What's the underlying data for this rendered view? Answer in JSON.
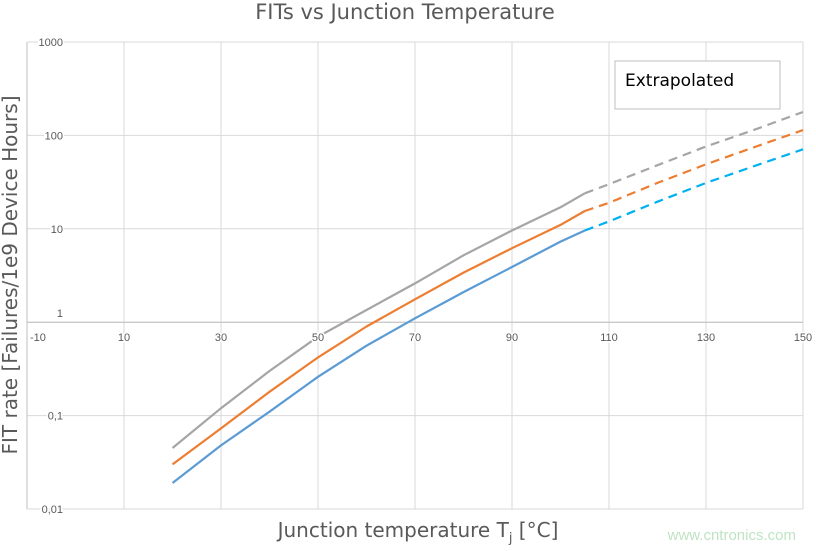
{
  "chart_data": {
    "type": "line",
    "title": "FITs vs Junction Temperature",
    "xlabel": "Junction temperature T",
    "xlabel_sub": "j",
    "xlabel_unit": " [°C]",
    "ylabel": "FIT rate [Failures/1e9 Device Hours]",
    "xlim": [
      -10,
      150
    ],
    "ylim": [
      0.01,
      1000
    ],
    "yscale": "log",
    "grid": true,
    "x_ticks": [
      "-10",
      "10",
      "30",
      "50",
      "70",
      "90",
      "110",
      "130",
      "150"
    ],
    "y_ticks": [
      "1000",
      "100",
      "10",
      "1",
      "0,1",
      "0,01"
    ],
    "annotation": "Extrapolated",
    "extrapolated_from": 105,
    "x": [
      20,
      30,
      40,
      50,
      60,
      70,
      80,
      90,
      100,
      105,
      110,
      120,
      130,
      140,
      150
    ],
    "series": [
      {
        "color": "#a5a5a5",
        "values": [
          0.045,
          0.12,
          0.3,
          0.7,
          1.35,
          2.6,
          5.2,
          9.6,
          17,
          24,
          30,
          48,
          76,
          115,
          178
        ]
      },
      {
        "color": "#ed7d31",
        "values": [
          0.03,
          0.073,
          0.18,
          0.42,
          0.9,
          1.76,
          3.4,
          6.2,
          11,
          15.5,
          19,
          31,
          49,
          75,
          114
        ]
      },
      {
        "color": "#5b9bd5",
        "dash_color": "#00b0f0",
        "values": [
          0.019,
          0.048,
          0.11,
          0.26,
          0.56,
          1.1,
          2.1,
          3.9,
          7.3,
          9.6,
          12,
          19.5,
          31,
          47,
          71
        ]
      }
    ]
  },
  "watermark": "www.cntronics.com"
}
